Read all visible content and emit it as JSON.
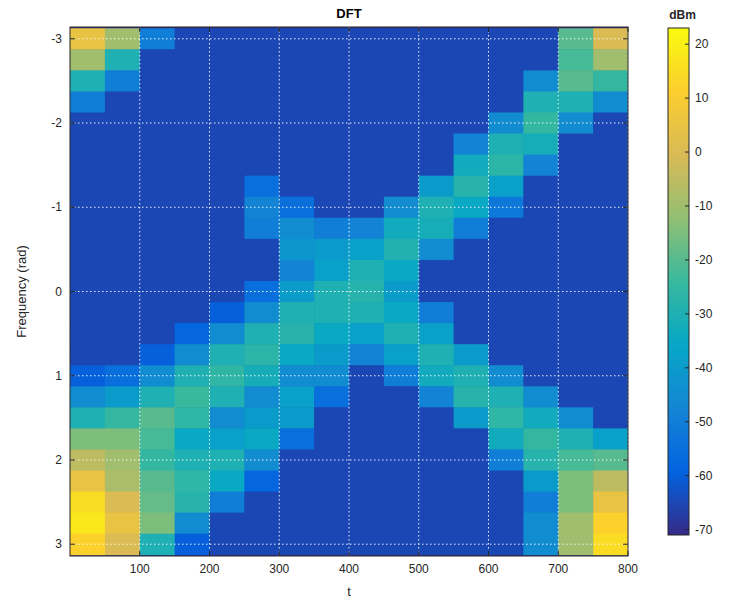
{
  "chart_data": {
    "type": "heatmap",
    "title": "DFT",
    "x_label": "t",
    "y_label": "Frequency (rad)",
    "x": [
      25,
      75,
      125,
      175,
      225,
      275,
      325,
      375,
      425,
      475,
      525,
      575,
      625,
      675,
      725,
      775
    ],
    "y": [
      -3,
      -2.75,
      -2.5,
      -2.25,
      -2,
      -1.75,
      -1.5,
      -1.25,
      -1,
      -0.75,
      -0.5,
      -0.25,
      0,
      0.25,
      0.5,
      0.75,
      1,
      1.25,
      1.5,
      1.75,
      2,
      2.25,
      2.5,
      2.75,
      3
    ],
    "values": [
      [
        5,
        -10,
        -50,
        -65,
        -65,
        -65,
        -65,
        -65,
        -65,
        -65,
        -65,
        -65,
        -65,
        -65,
        -20,
        0
      ],
      [
        -10,
        -30,
        -65,
        -65,
        -65,
        -65,
        -65,
        -65,
        -65,
        -65,
        -65,
        -65,
        -65,
        -65,
        -22,
        -10
      ],
      [
        -30,
        -50,
        -65,
        -65,
        -65,
        -65,
        -65,
        -65,
        -65,
        -65,
        -65,
        -65,
        -65,
        -45,
        -20,
        -25
      ],
      [
        -50,
        -65,
        -65,
        -65,
        -65,
        -65,
        -65,
        -65,
        -65,
        -65,
        -65,
        -65,
        -65,
        -30,
        -30,
        -45
      ],
      [
        -65,
        -65,
        -65,
        -65,
        -65,
        -65,
        -65,
        -65,
        -65,
        -65,
        -65,
        -65,
        -45,
        -25,
        -45,
        -65
      ],
      [
        -65,
        -65,
        -65,
        -65,
        -65,
        -65,
        -65,
        -65,
        -65,
        -65,
        -65,
        -48,
        -30,
        -32,
        -65,
        -65
      ],
      [
        -65,
        -65,
        -65,
        -65,
        -65,
        -65,
        -65,
        -65,
        -65,
        -65,
        -65,
        -33,
        -27,
        -48,
        -65,
        -65
      ],
      [
        -65,
        -65,
        -65,
        -65,
        -65,
        -55,
        -65,
        -65,
        -65,
        -65,
        -40,
        -28,
        -38,
        -65,
        -65,
        -65
      ],
      [
        -65,
        -65,
        -65,
        -65,
        -65,
        -48,
        -55,
        -65,
        -65,
        -45,
        -30,
        -35,
        -52,
        -65,
        -65,
        -65
      ],
      [
        -65,
        -65,
        -65,
        -65,
        -65,
        -50,
        -45,
        -50,
        -48,
        -33,
        -32,
        -50,
        -65,
        -65,
        -65,
        -65
      ],
      [
        -65,
        -65,
        -65,
        -65,
        -65,
        -65,
        -42,
        -40,
        -38,
        -29,
        -45,
        -65,
        -65,
        -65,
        -65,
        -65
      ],
      [
        -65,
        -65,
        -65,
        -65,
        -65,
        -65,
        -48,
        -38,
        -30,
        -35,
        -65,
        -65,
        -65,
        -65,
        -65,
        -65
      ],
      [
        -65,
        -65,
        -65,
        -65,
        -65,
        -55,
        -40,
        -30,
        -28,
        -40,
        -65,
        -65,
        -65,
        -65,
        -65,
        -65
      ],
      [
        -65,
        -65,
        -65,
        -65,
        -60,
        -45,
        -30,
        -30,
        -30,
        -35,
        -50,
        -65,
        -65,
        -65,
        -65,
        -65
      ],
      [
        -65,
        -65,
        -65,
        -58,
        -45,
        -30,
        -28,
        -35,
        -38,
        -30,
        -38,
        -65,
        -65,
        -65,
        -65,
        -65
      ],
      [
        -65,
        -65,
        -60,
        -45,
        -30,
        -27,
        -35,
        -40,
        -48,
        -38,
        -30,
        -40,
        -65,
        -65,
        -65,
        -65
      ],
      [
        -60,
        -55,
        -45,
        -30,
        -26,
        -32,
        -45,
        -45,
        -65,
        -50,
        -33,
        -30,
        -45,
        -65,
        -65,
        -65
      ],
      [
        -45,
        -40,
        -30,
        -24,
        -30,
        -45,
        -38,
        -55,
        -65,
        -65,
        -48,
        -28,
        -30,
        -45,
        -65,
        -65
      ],
      [
        -30,
        -25,
        -20,
        -26,
        -45,
        -40,
        -40,
        -65,
        -65,
        -65,
        -65,
        -40,
        -26,
        -33,
        -45,
        -65
      ],
      [
        -15,
        -15,
        -22,
        -35,
        -38,
        -35,
        -55,
        -65,
        -65,
        -65,
        -65,
        -65,
        -33,
        -25,
        -30,
        -38
      ],
      [
        -5,
        -10,
        -25,
        -30,
        -30,
        -45,
        -65,
        -65,
        -65,
        -65,
        -65,
        -65,
        -50,
        -28,
        -22,
        -20
      ],
      [
        5,
        -8,
        -20,
        -26,
        -35,
        -58,
        -65,
        -65,
        -65,
        -65,
        -65,
        -65,
        -65,
        -40,
        -15,
        -5
      ],
      [
        15,
        0,
        -18,
        -28,
        -50,
        -65,
        -65,
        -65,
        -65,
        -65,
        -65,
        -65,
        -65,
        -50,
        -15,
        5
      ],
      [
        18,
        5,
        -15,
        -45,
        -65,
        -65,
        -65,
        -65,
        -65,
        -65,
        -65,
        -65,
        -65,
        -45,
        -10,
        12
      ],
      [
        12,
        0,
        -30,
        -60,
        -65,
        -65,
        -65,
        -65,
        -65,
        -65,
        -65,
        -65,
        -65,
        -45,
        -10,
        15
      ]
    ],
    "xlim": [
      0,
      800
    ],
    "ylim": [
      3.14,
      -3.14
    ],
    "xticks": [
      100,
      200,
      300,
      400,
      500,
      600,
      700,
      800
    ],
    "yticks": [
      -3,
      -2,
      -1,
      0,
      1,
      2,
      3
    ],
    "grid": true,
    "colorbar": {
      "label": "dBm",
      "range": [
        -71,
        23
      ],
      "ticks": [
        -70,
        -60,
        -50,
        -40,
        -30,
        -20,
        -10,
        0,
        10,
        20
      ]
    }
  }
}
